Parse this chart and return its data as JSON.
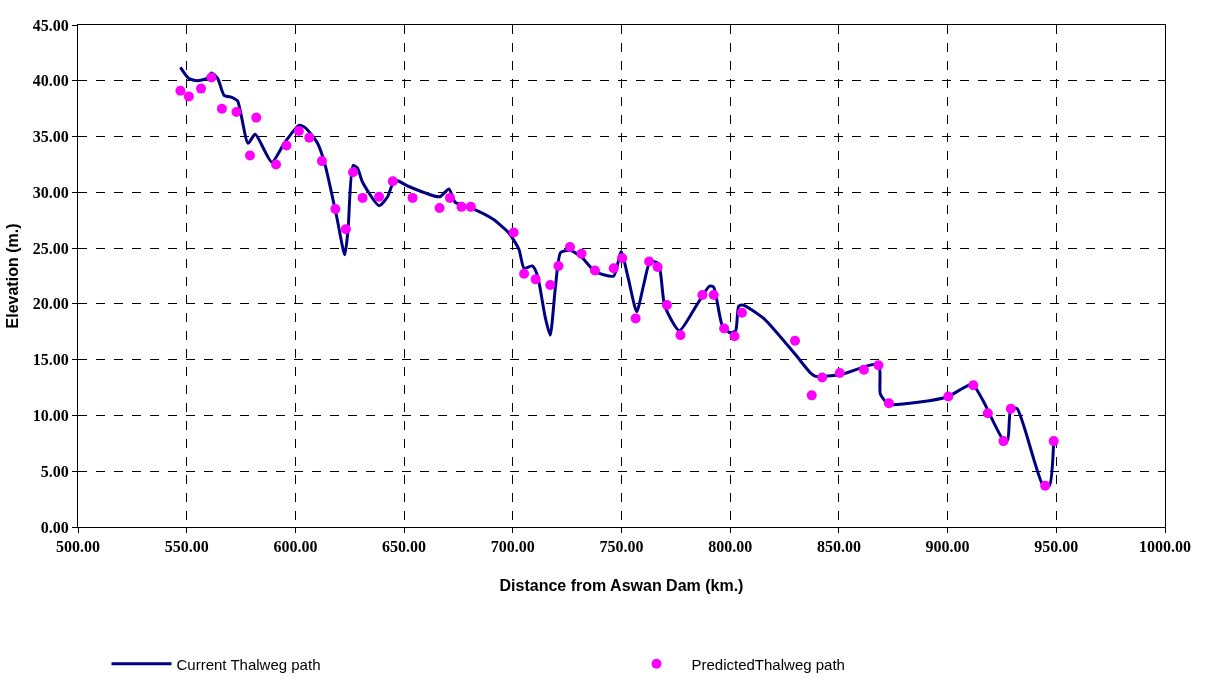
{
  "chart_data": {
    "type": "line",
    "xlabel": "Distance from Aswan Dam (km.)",
    "ylabel": "Elevation (m.)",
    "xlim": [
      500,
      1000
    ],
    "xticks": [
      {
        "value": 500,
        "label": "500.00"
      },
      {
        "value": 550,
        "label": "550.00"
      },
      {
        "value": 600,
        "label": "600.00"
      },
      {
        "value": 650,
        "label": "650.00"
      },
      {
        "value": 700,
        "label": "700.00"
      },
      {
        "value": 750,
        "label": "750.00"
      },
      {
        "value": 800,
        "label": "800.00"
      },
      {
        "value": 850,
        "label": "850.00"
      },
      {
        "value": 900,
        "label": "900.00"
      },
      {
        "value": 950,
        "label": "950.00"
      },
      {
        "value": 1000,
        "label": "1000.00"
      }
    ],
    "ylim": [
      0,
      45
    ],
    "yticks": [
      {
        "value": 0,
        "label": "0.00"
      },
      {
        "value": 5,
        "label": "5.00"
      },
      {
        "value": 10,
        "label": "10.00"
      },
      {
        "value": 15,
        "label": "15.00"
      },
      {
        "value": 20,
        "label": "20.00"
      },
      {
        "value": 25,
        "label": "25.00"
      },
      {
        "value": 30,
        "label": "30.00"
      },
      {
        "value": 35,
        "label": "35.00"
      },
      {
        "value": 40,
        "label": "40.00"
      },
      {
        "value": 45,
        "label": "45.00"
      }
    ],
    "grid": true,
    "legend": "bottom",
    "series": [
      {
        "name": "Current Thalweg path",
        "color": "#000080",
        "marker": "none",
        "line_style": "solid",
        "x": [
          547.1,
          551,
          554.8,
          559.1,
          561.4,
          564.3,
          567.2,
          571,
          573.4,
          578.2,
          581.5,
          589.2,
          594.9,
          601.6,
          604.5,
          610.2,
          613.6,
          618.9,
          622.7,
          624.2,
          626.5,
          628.5,
          630.9,
          638.5,
          642.4,
          645.7,
          652.4,
          666.3,
          670.6,
          673.5,
          680.7,
          690.8,
          698,
          702.8,
          705.2,
          709.0,
          711.4,
          714.8,
          717.2,
          719.6,
          722.0,
          726.3,
          731.6,
          737.8,
          746.4,
          749.8,
          753.1,
          757,
          760.3,
          763.2,
          767.0,
          769.9,
          776.6,
          784.3,
          790.5,
          792.4,
          796.3,
          800.1,
          802.5,
          803.9,
          805.8,
          815.4,
          829.8,
          837,
          839.4,
          851.4,
          868.2,
          869.1,
          873,
          887.3,
          900.3,
          911.3,
          916.1,
          925.7,
          927.6,
          929.1,
          932,
          944,
          946.8,
          948.8
        ],
        "values": [
          41.2,
          40.2,
          40.0,
          40.2,
          40.7,
          40.2,
          38.7,
          38.5,
          38.2,
          34.4,
          35.2,
          32.7,
          34.4,
          36.0,
          35.8,
          34.4,
          32.5,
          27.9,
          24.4,
          26.6,
          32.4,
          32.2,
          30.9,
          28.8,
          29.6,
          31.1,
          30.5,
          29.6,
          30.3,
          29.1,
          28.6,
          27.6,
          26.4,
          24.9,
          23.2,
          23.4,
          22.5,
          18.9,
          17.2,
          21.5,
          24.6,
          24.8,
          24.2,
          22.9,
          22.5,
          24.7,
          22.3,
          19.3,
          21.8,
          23.8,
          23.6,
          19.8,
          17.6,
          19.8,
          21.6,
          21.5,
          18.1,
          17.4,
          17.6,
          19.8,
          19.9,
          18.7,
          15.5,
          13.8,
          13.5,
          13.7,
          14.6,
          11.9,
          11.0,
          11.2,
          11.7,
          12.8,
          11.4,
          7.8,
          7.8,
          10.6,
          10.6,
          3.7,
          3.7,
          7.7
        ]
      },
      {
        "name": "PredictedThalweg path",
        "type": "scatter",
        "color": "#ff00ff",
        "marker": "circle",
        "x": [
          547.1,
          551,
          556.6,
          561.4,
          566.2,
          572.9,
          579.1,
          582,
          591.1,
          595.9,
          601.6,
          606.4,
          612.2,
          618.4,
          623.2,
          626.5,
          630.9,
          638.5,
          644.8,
          653.9,
          666.3,
          671.1,
          676.4,
          680.7,
          700.4,
          705.2,
          710.5,
          717.2,
          721.0,
          726.3,
          731.6,
          737.8,
          746.4,
          750.3,
          756.5,
          762.7,
          766.6,
          770.9,
          777.1,
          787.2,
          792.4,
          797.2,
          802.0,
          805.4,
          829.8,
          837.5,
          842.3,
          850.4,
          861.5,
          868.2,
          873.0,
          900.3,
          911.8,
          918.5,
          925.7,
          929.1,
          944.9,
          948.8
        ],
        "values": [
          39.1,
          38.6,
          39.3,
          40.3,
          37.5,
          37.2,
          33.3,
          36.7,
          32.5,
          34.2,
          35.5,
          34.9,
          32.8,
          28.5,
          26.7,
          31.8,
          29.5,
          29.6,
          31.0,
          29.5,
          28.6,
          29.5,
          28.7,
          28.7,
          26.4,
          22.7,
          22.2,
          21.7,
          23.4,
          25.1,
          24.5,
          23.0,
          23.2,
          24.1,
          18.7,
          23.8,
          23.3,
          19.9,
          17.2,
          20.8,
          20.8,
          17.8,
          17.1,
          19.2,
          16.7,
          11.8,
          13.4,
          13.8,
          14.1,
          14.5,
          11.1,
          11.7,
          12.7,
          10.2,
          7.7,
          10.6,
          3.7,
          7.7
        ]
      }
    ]
  }
}
